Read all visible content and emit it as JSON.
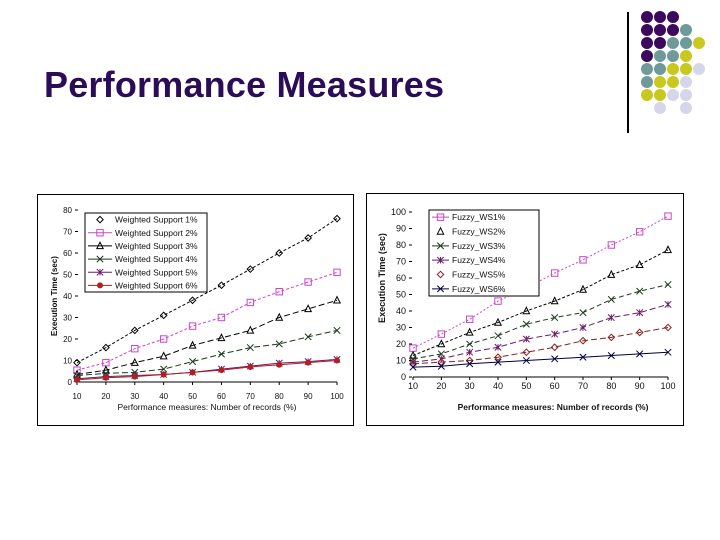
{
  "slide": {
    "title": "Performance Measures",
    "accent_colors": {
      "title": "#2a0c57",
      "purple": "#3b0a5e",
      "teal": "#6f9a9a",
      "yellow": "#c8c81e",
      "lavender": "#d6d6ea"
    }
  },
  "decor": {
    "dot_grid": [
      [
        "P",
        "P",
        "P",
        "",
        ""
      ],
      [
        "P",
        "P",
        "P",
        "T",
        ""
      ],
      [
        "P",
        "P",
        "T",
        "T",
        "Y"
      ],
      [
        "P",
        "T",
        "T",
        "Y",
        ""
      ],
      [
        "T",
        "T",
        "Y",
        "Y",
        "L"
      ],
      [
        "T",
        "Y",
        "Y",
        "L",
        ""
      ],
      [
        "Y",
        "Y",
        "L",
        "L",
        ""
      ],
      [
        "",
        "L",
        "",
        "L",
        ""
      ]
    ]
  },
  "chart_data": [
    {
      "type": "line",
      "title": "",
      "xlabel": "Performance measures: Number of records (%)",
      "ylabel": "Execution Time (sec)",
      "categories": [
        10,
        20,
        30,
        40,
        50,
        60,
        70,
        80,
        90,
        100
      ],
      "ylim": [
        0,
        80
      ],
      "yticks": [
        0,
        10,
        20,
        30,
        40,
        50,
        60,
        70,
        80
      ],
      "grid": false,
      "legend_position": "upper-left",
      "series": [
        {
          "name": "Weighted Support 1%",
          "color": "#000000",
          "marker": "diamond",
          "dash": "3,2",
          "values": [
            9,
            16,
            24,
            31,
            38,
            45,
            52.5,
            60,
            67,
            76
          ]
        },
        {
          "name": "Weighted Support 2%",
          "color": "#cc44cc",
          "marker": "square",
          "dash": "3,2",
          "values": [
            5.5,
            9,
            15.5,
            20,
            26,
            30,
            37,
            42,
            46.5,
            51
          ]
        },
        {
          "name": "Weighted Support 3%",
          "color": "#000000",
          "marker": "triangle",
          "dash": "6,3",
          "values": [
            3.5,
            5.5,
            9,
            12,
            17,
            20.5,
            24,
            30,
            34,
            38
          ]
        },
        {
          "name": "Weighted Support 4%",
          "color": "#1a3a1a",
          "marker": "cross",
          "dash": "6,3",
          "values": [
            3,
            4,
            4.5,
            6,
            9.5,
            13,
            16,
            17.7,
            21,
            24
          ]
        },
        {
          "name": "Weighted Support 5%",
          "color": "#6a1a6a",
          "marker": "star",
          "dash": "",
          "values": [
            1.5,
            2.5,
            3,
            3.5,
            4.5,
            6,
            7.4,
            8.8,
            9.5,
            10.5
          ]
        },
        {
          "name": "Weighted Support 6%",
          "color": "#b02020",
          "marker": "circle",
          "dash": "",
          "values": [
            1,
            2,
            2.5,
            3.5,
            4.5,
            5.5,
            7,
            8,
            9,
            10
          ]
        }
      ]
    },
    {
      "type": "line",
      "title": "",
      "xlabel": "Performance measures: Number of records (%)",
      "ylabel": "Execution Time (sec)",
      "categories": [
        10,
        20,
        30,
        40,
        50,
        60,
        70,
        80,
        90,
        100
      ],
      "ylim": [
        0,
        100
      ],
      "yticks": [
        0,
        10,
        20,
        30,
        40,
        50,
        60,
        70,
        80,
        90,
        100
      ],
      "grid": false,
      "legend_position": "upper-left",
      "series": [
        {
          "name": "Fuzzy_WS1%",
          "color": "#cc44cc",
          "marker": "square",
          "dash": "2,2",
          "values": [
            17.5,
            26,
            35,
            46,
            54,
            63,
            71,
            80,
            88,
            97.5
          ]
        },
        {
          "name": "Fuzzy_WS2%",
          "color": "#000000",
          "marker": "triangle",
          "dash": "3,2",
          "values": [
            13,
            20,
            27,
            33,
            40,
            46,
            53,
            62,
            68,
            77
          ]
        },
        {
          "name": "Fuzzy_WS3%",
          "color": "#1a3a1a",
          "marker": "cross",
          "dash": "5,3",
          "values": [
            11,
            14,
            20,
            25,
            32,
            36,
            39,
            47,
            52,
            56
          ]
        },
        {
          "name": "Fuzzy_WS4%",
          "color": "#6a1a6a",
          "marker": "star",
          "dash": "6,3",
          "values": [
            9,
            11,
            15,
            18,
            23,
            26,
            30,
            36,
            39,
            44
          ]
        },
        {
          "name": "Fuzzy_WS5%",
          "color": "#8b2020",
          "marker": "diamond",
          "dash": "6,3",
          "values": [
            8,
            9,
            10,
            12,
            15,
            18,
            22,
            24,
            27,
            30
          ]
        },
        {
          "name": "Fuzzy_WS6%",
          "color": "#000040",
          "marker": "cross",
          "dash": "",
          "values": [
            6,
            6.5,
            8,
            9,
            10,
            11,
            12,
            13,
            14,
            15
          ]
        }
      ]
    }
  ]
}
